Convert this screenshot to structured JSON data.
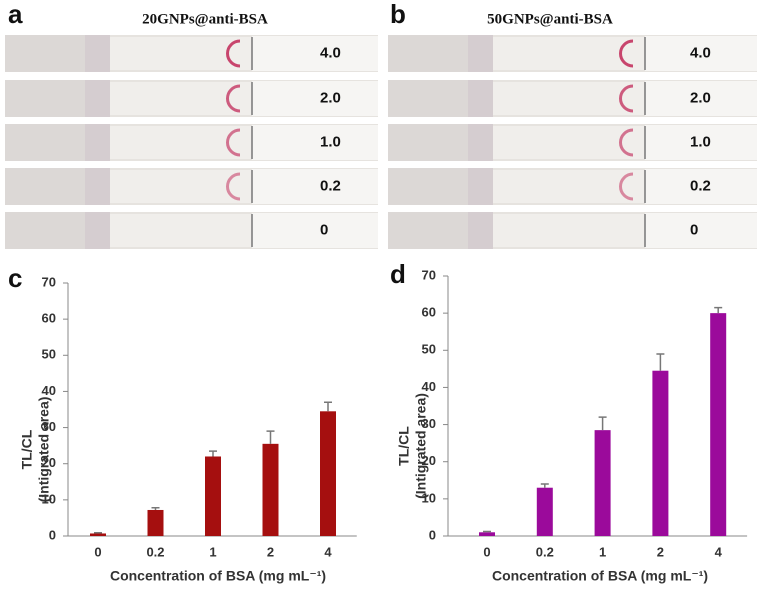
{
  "photo_panels": [
    {
      "panel": "a",
      "title": "20GNPs@anti-BSA",
      "strip_labels": [
        "4.0",
        "2.0",
        "1.0",
        "0.2",
        "0"
      ]
    },
    {
      "panel": "b",
      "title": "50GNPs@anti-BSA",
      "strip_labels": [
        "4.0",
        "2.0",
        "1.0",
        "0.2",
        "0"
      ]
    }
  ],
  "chart_data": [
    {
      "type": "bar",
      "panel": "c",
      "categories": [
        "0",
        "0.2",
        "1",
        "2",
        "4"
      ],
      "values": [
        0.7,
        7.2,
        22,
        25.5,
        34.5
      ],
      "errors": [
        0.2,
        0.6,
        1.5,
        3.5,
        2.5
      ],
      "color": "#a50f0f",
      "xlabel": "Concentration of BSA (mg mL⁻¹)",
      "ylabel": [
        "TL/CL",
        "(Intigrated area)"
      ],
      "ylim": [
        0,
        70
      ],
      "yticks": [
        0,
        10,
        20,
        30,
        40,
        50,
        60,
        70
      ],
      "grid": false
    },
    {
      "type": "bar",
      "panel": "d",
      "categories": [
        "0",
        "0.2",
        "1",
        "2",
        "4"
      ],
      "values": [
        1,
        13,
        28.5,
        44.5,
        60
      ],
      "errors": [
        0.2,
        1,
        3.5,
        4.5,
        1.5
      ],
      "color": "#9b0a9b",
      "xlabel": "Concentration of BSA (mg mL⁻¹)",
      "ylabel": [
        "TL/CL",
        "(Intigrated area)"
      ],
      "ylim": [
        0,
        70
      ],
      "yticks": [
        0,
        10,
        20,
        30,
        40,
        50,
        60,
        70
      ],
      "grid": false
    }
  ]
}
